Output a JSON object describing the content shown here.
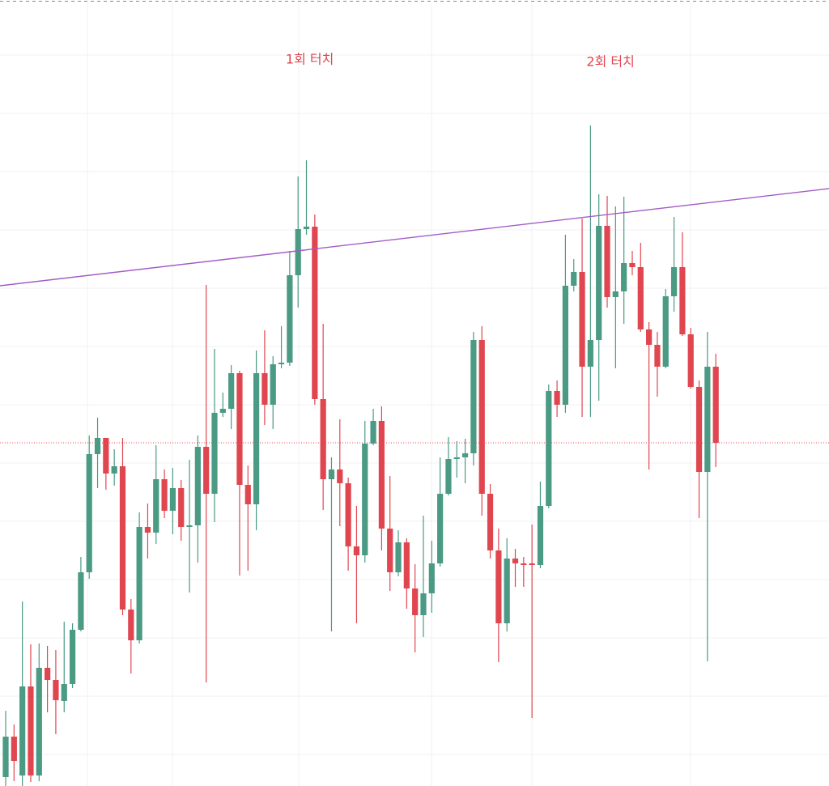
{
  "chart_data": {
    "type": "candlestick",
    "up_color": "#4a9a84",
    "down_color": "#e0464f",
    "xlim": [
      -0.68,
      98.55
    ],
    "ylim": [
      0,
      971
    ],
    "grid": true,
    "open": [
      11,
      61,
      13,
      123,
      13,
      146,
      131,
      105,
      126,
      193,
      264,
      410,
      430,
      386,
      395,
      218,
      180,
      320,
      313,
      379,
      340,
      368,
      320,
      322,
      419,
      361,
      461,
      466,
      510,
      372,
      348,
      510,
      471,
      521,
      523,
      631,
      688,
      691,
      478,
      379,
      391,
      374,
      296,
      285,
      423,
      451,
      318,
      264,
      301,
      244,
      211,
      238,
      275,
      361,
      404,
      406,
      411,
      551,
      361,
      291,
      201,
      281,
      275,
      275,
      273,
      346,
      488,
      471,
      618,
      635,
      518,
      551,
      692,
      604,
      611,
      646,
      641,
      564,
      545,
      518,
      605,
      641,
      558,
      493,
      388,
      518
    ],
    "high": [
      93,
      76,
      228,
      175,
      176,
      173,
      168,
      203,
      201,
      283,
      433,
      455,
      430,
      416,
      430,
      231,
      338,
      349,
      421,
      391,
      393,
      378,
      403,
      433,
      619,
      540,
      486,
      520,
      513,
      396,
      538,
      563,
      531,
      568,
      661,
      753,
      773,
      706,
      571,
      406,
      453,
      381,
      346,
      451,
      466,
      469,
      383,
      316,
      306,
      274,
      334,
      303,
      406,
      431,
      426,
      429,
      561,
      568,
      373,
      318,
      306,
      293,
      283,
      323,
      376,
      496,
      501,
      681,
      651,
      701,
      816,
      731,
      729,
      716,
      728,
      661,
      671,
      573,
      561,
      614,
      703,
      684,
      566,
      501,
      561,
      534
    ],
    "low": [
      0,
      6,
      0,
      5,
      6,
      91,
      64,
      91,
      121,
      191,
      256,
      368,
      366,
      371,
      211,
      139,
      176,
      281,
      299,
      331,
      311,
      303,
      239,
      276,
      128,
      326,
      456,
      441,
      260,
      266,
      316,
      446,
      441,
      516,
      519,
      591,
      681,
      471,
      341,
      191,
      321,
      266,
      201,
      276,
      421,
      291,
      241,
      259,
      219,
      165,
      184,
      214,
      271,
      359,
      381,
      374,
      396,
      334,
      281,
      153,
      191,
      246,
      246,
      84,
      269,
      343,
      456,
      461,
      611,
      456,
      456,
      476,
      591,
      516,
      571,
      631,
      561,
      391,
      481,
      516,
      586,
      556,
      491,
      331,
      154,
      394
    ],
    "close": [
      61,
      31,
      123,
      13,
      146,
      131,
      106,
      126,
      193,
      264,
      410,
      430,
      386,
      395,
      218,
      180,
      320,
      313,
      379,
      340,
      368,
      320,
      322,
      419,
      361,
      461,
      466,
      510,
      372,
      348,
      510,
      471,
      521,
      523,
      631,
      688,
      691,
      478,
      379,
      391,
      374,
      296,
      285,
      423,
      451,
      318,
      264,
      301,
      244,
      211,
      238,
      275,
      361,
      404,
      406,
      411,
      551,
      361,
      291,
      201,
      281,
      275,
      273,
      273,
      346,
      488,
      471,
      618,
      635,
      518,
      551,
      692,
      604,
      611,
      646,
      641,
      564,
      545,
      518,
      605,
      641,
      558,
      493,
      388,
      518,
      424
    ],
    "trendline": {
      "color": "#a35cc6",
      "values": [
        618,
        738
      ]
    },
    "price_line": {
      "color": "#e0464f",
      "value": 424
    },
    "annotations": [
      {
        "text": "1회 터치",
        "x": 36.4,
        "y": 897,
        "color": "#e0464f"
      },
      {
        "text": "2회 터치",
        "x": 72.4,
        "y": 894,
        "color": "#e0464f"
      }
    ]
  }
}
